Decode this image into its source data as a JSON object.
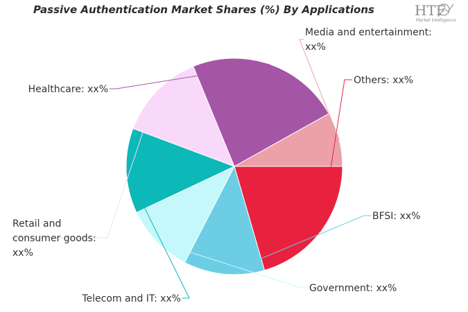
{
  "chart_data": {
    "type": "pie",
    "title": "Passive Authentication Market Shares (%) By Applications",
    "slices": [
      {
        "name": "Others",
        "label": "Others: xx%",
        "value": 20.5,
        "color": "#e8213f"
      },
      {
        "name": "BFSI",
        "label": "BFSI: xx%",
        "value": 12.1,
        "color": "#6dcde4"
      },
      {
        "name": "Government",
        "label": "Government: xx%",
        "value": 10.4,
        "color": "#c5f8fa"
      },
      {
        "name": "Telecom and IT",
        "label": "Telecom and IT: xx%",
        "value": 12.7,
        "color": "#0cb8b8"
      },
      {
        "name": "Retail and consumer goods",
        "label_lines": [
          "Retail and",
          "consumer goods:",
          "xx%"
        ],
        "value": 13.1,
        "color": "#f9d9fa"
      },
      {
        "name": "Healthcare",
        "label": "Healthcare: xx%",
        "value": 23.1,
        "color": "#a455a6"
      },
      {
        "name": "Media and entertainment",
        "label_lines": [
          "Media and entertainment:",
          "xx%"
        ],
        "value": 8.1,
        "color": "#eca0a8"
      }
    ],
    "start_angle_deg": 0,
    "direction": "clockwise"
  },
  "logo": {
    "text": "HTF",
    "subtext": "Market Intelligence"
  }
}
